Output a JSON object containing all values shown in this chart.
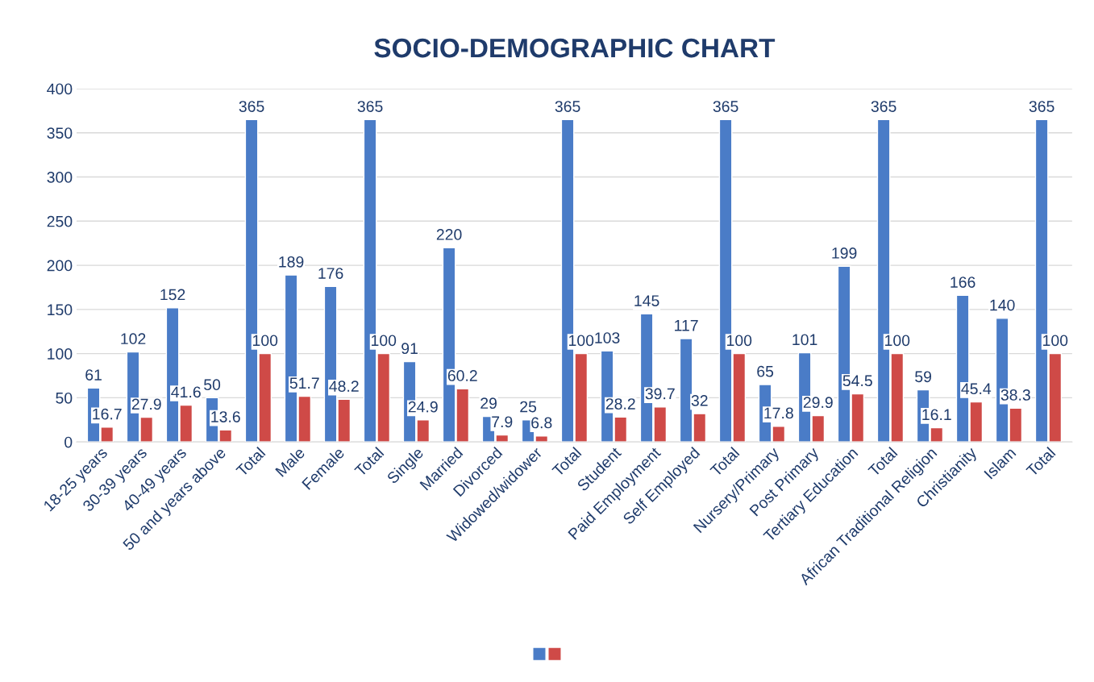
{
  "chart_data": {
    "type": "bar",
    "title": "SOCIO-DEMOGRAPHIC CHART",
    "categories": [
      "18-25 years",
      "30-39 years",
      "40-49 years",
      "50 and years above",
      "Total",
      "Male",
      "Female",
      "Total",
      "Single",
      "Married",
      "Divorced",
      "Widowed/widower",
      "Total",
      "Student",
      "Paid Employment",
      "Self Employed",
      "Total",
      "Nursery/Primary",
      "Post Primary",
      "Tertiary Education",
      "Total",
      "African Traditional Religion",
      "Christianity",
      "Islam",
      "Total"
    ],
    "series": [
      {
        "color": "#4a7cc7",
        "values": [
          61,
          102,
          152,
          50,
          365,
          189,
          176,
          365,
          91,
          220,
          29,
          25,
          365,
          103,
          145,
          117,
          365,
          65,
          101,
          199,
          365,
          59,
          166,
          140,
          365
        ]
      },
      {
        "color": "#cf4a47",
        "values": [
          16.7,
          27.9,
          41.6,
          13.6,
          100,
          51.7,
          48.2,
          100,
          24.9,
          60.2,
          7.9,
          6.8,
          100,
          28.2,
          39.7,
          32,
          100,
          17.8,
          29.9,
          54.5,
          100,
          16.1,
          45.4,
          38.3,
          100
        ]
      }
    ],
    "ylim": [
      0,
      400
    ],
    "yticks": [
      0,
      50,
      100,
      150,
      200,
      250,
      300,
      350,
      400
    ],
    "grid": "y",
    "data_labels": true
  }
}
